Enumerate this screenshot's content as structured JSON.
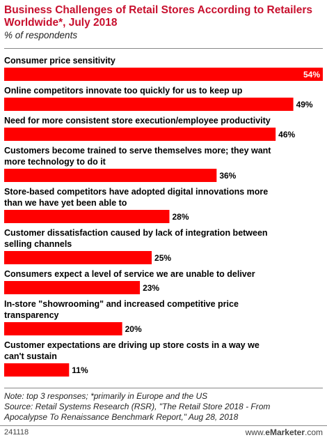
{
  "chart_data": {
    "type": "bar",
    "orientation": "horizontal",
    "title": "Business Challenges of Retail Stores According to Retailers Worldwide*, July 2018",
    "subtitle": "% of respondents",
    "categories": [
      [
        "Consumer price sensitivity"
      ],
      [
        "Online competitors innovate too quickly for us to keep up"
      ],
      [
        "Need for more consistent store execution/employee productivity"
      ],
      [
        "Customers become trained to serve themselves more; they want",
        "more technology to do it"
      ],
      [
        "Store-based competitors have adopted digital innovations more",
        "than we have yet been able to"
      ],
      [
        "Customer dissatisfaction caused by lack of integration between",
        "selling channels"
      ],
      [
        "Consumers expect a level of service we are unable to deliver"
      ],
      [
        "In-store \"showrooming\" and increased competitive price",
        "transparency"
      ],
      [
        "Customer expectations are driving up store costs in a way we",
        "can't sustain"
      ]
    ],
    "values": [
      54,
      49,
      46,
      36,
      28,
      25,
      23,
      20,
      11
    ],
    "value_labels": [
      "54%",
      "49%",
      "46%",
      "36%",
      "28%",
      "25%",
      "23%",
      "20%",
      "11%"
    ],
    "xlim": [
      0,
      54
    ],
    "bar_color": "#ff0000",
    "grid": false,
    "legend": "none"
  },
  "footer": {
    "note": "Note: top 3 responses; *primarily in Europe and the US",
    "source_line1": "Source: Retail Systems Research (RSR), \"The Retail Store 2018 - From",
    "source_line2": "Apocalypse To Renaissance Benchmark Report,\" Aug 28, 2018",
    "chart_id": "241118",
    "brand_prefix": "www.",
    "brand_name": "eMarketer",
    "brand_suffix": ".com"
  }
}
